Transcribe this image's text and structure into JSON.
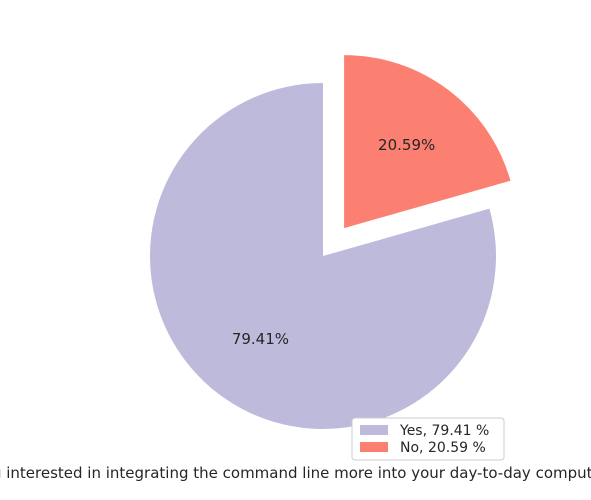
{
  "chart_data": {
    "type": "pie",
    "xlabel": "Are you interested in integrating the command line more into your day-to-day computer use?",
    "slices": [
      {
        "label": "Yes",
        "value": 79.41,
        "pct_text": "79.41%",
        "legend_text": "Yes, 79.41 %",
        "color": "#bebadb",
        "exploded": false
      },
      {
        "label": "No",
        "value": 20.59,
        "pct_text": "20.59%",
        "legend_text": "No, 20.59 %",
        "color": "#fb8072",
        "exploded": true
      }
    ],
    "legend_placement": "lower-right"
  }
}
